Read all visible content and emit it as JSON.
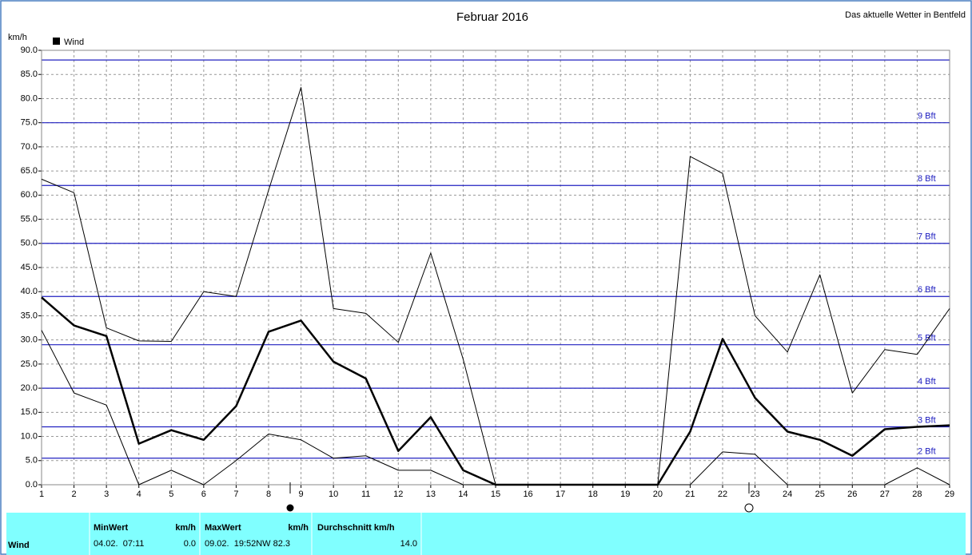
{
  "site_name": "Das aktuelle Wetter in Bentfeld",
  "chart_data": {
    "type": "line",
    "title": "Februar 2016",
    "y_label": "km/h",
    "categories": [
      "1",
      "2",
      "3",
      "4",
      "5",
      "6",
      "7",
      "8",
      "9",
      "10",
      "11",
      "12",
      "13",
      "14",
      "15",
      "16",
      "17",
      "18",
      "19",
      "20",
      "21",
      "22",
      "23",
      "24",
      "25",
      "26",
      "27",
      "28",
      "29"
    ],
    "series": [
      {
        "color": "#000000",
        "width": 1,
        "values": [
          63.3,
          60.5,
          32.5,
          29.8,
          29.7,
          40,
          39,
          61,
          82.3,
          36.5,
          35.5,
          29.5,
          48,
          26,
          0,
          0,
          0,
          0,
          0,
          0,
          68,
          64.5,
          35,
          27.5,
          43.5,
          19,
          28,
          27,
          36.5
        ]
      },
      {
        "name": "Wind",
        "color": "#000000",
        "width": 2.5,
        "values": [
          38.8,
          33,
          30.8,
          8.5,
          11.3,
          9.3,
          16.3,
          31.7,
          34,
          25.5,
          22,
          7,
          14,
          3,
          0,
          0,
          0,
          0,
          0,
          0,
          11,
          30.2,
          18,
          11,
          9.3,
          6,
          11.5,
          12,
          12.3
        ]
      },
      {
        "color": "#000000",
        "width": 1,
        "values": [
          32,
          19,
          16.5,
          0,
          3,
          0,
          5,
          10.5,
          9.3,
          5.5,
          6,
          3,
          3,
          0,
          0,
          0,
          0,
          0,
          0,
          0,
          0,
          6.8,
          6.3,
          0,
          0,
          0,
          0,
          3.5,
          0
        ]
      }
    ],
    "ylim": [
      0,
      90
    ],
    "yticks": [
      {
        "value": 0,
        "label": "0.0"
      },
      {
        "value": 5,
        "label": "5.0"
      },
      {
        "value": 10,
        "label": "10.0"
      },
      {
        "value": 15,
        "label": "15.0"
      },
      {
        "value": 20,
        "label": "20.0"
      },
      {
        "value": 25,
        "label": "25.0"
      },
      {
        "value": 30,
        "label": "30.0"
      },
      {
        "value": 35,
        "label": "35.0"
      },
      {
        "value": 40,
        "label": "40.0"
      },
      {
        "value": 45,
        "label": "45.0"
      },
      {
        "value": 50,
        "label": "50.0"
      },
      {
        "value": 55,
        "label": "55.0"
      },
      {
        "value": 60,
        "label": "60.0"
      },
      {
        "value": 65,
        "label": "65.0"
      },
      {
        "value": 70,
        "label": "70.0"
      },
      {
        "value": 75,
        "label": "75.0"
      },
      {
        "value": 80,
        "label": "80.0"
      },
      {
        "value": 85,
        "label": "85.0"
      },
      {
        "value": 90,
        "label": "90.0"
      }
    ],
    "grid": true,
    "legend": "top-left",
    "reference_color": "#2020c0",
    "reference_lines": [
      {
        "value": 5.5,
        "label": "2 Bft"
      },
      {
        "value": 12,
        "label": "3 Bft"
      },
      {
        "value": 20,
        "label": "4 Bft"
      },
      {
        "value": 29,
        "label": "5 Bft"
      },
      {
        "value": 39,
        "label": "6 Bft"
      },
      {
        "value": 50,
        "label": "7 Bft"
      },
      {
        "value": 62,
        "label": "8 Bft"
      },
      {
        "value": 75,
        "label": "9 Bft"
      },
      {
        "value": 88
      }
    ]
  },
  "table": {
    "header": [
      "MinWert",
      "km/h",
      "MaxWert",
      "km/h",
      "Durchschnitt km/h"
    ],
    "row": [
      "Wind",
      "04.02.  07:11",
      "0.0",
      "09.02.  19:52NW 82.3",
      "14.0"
    ]
  }
}
